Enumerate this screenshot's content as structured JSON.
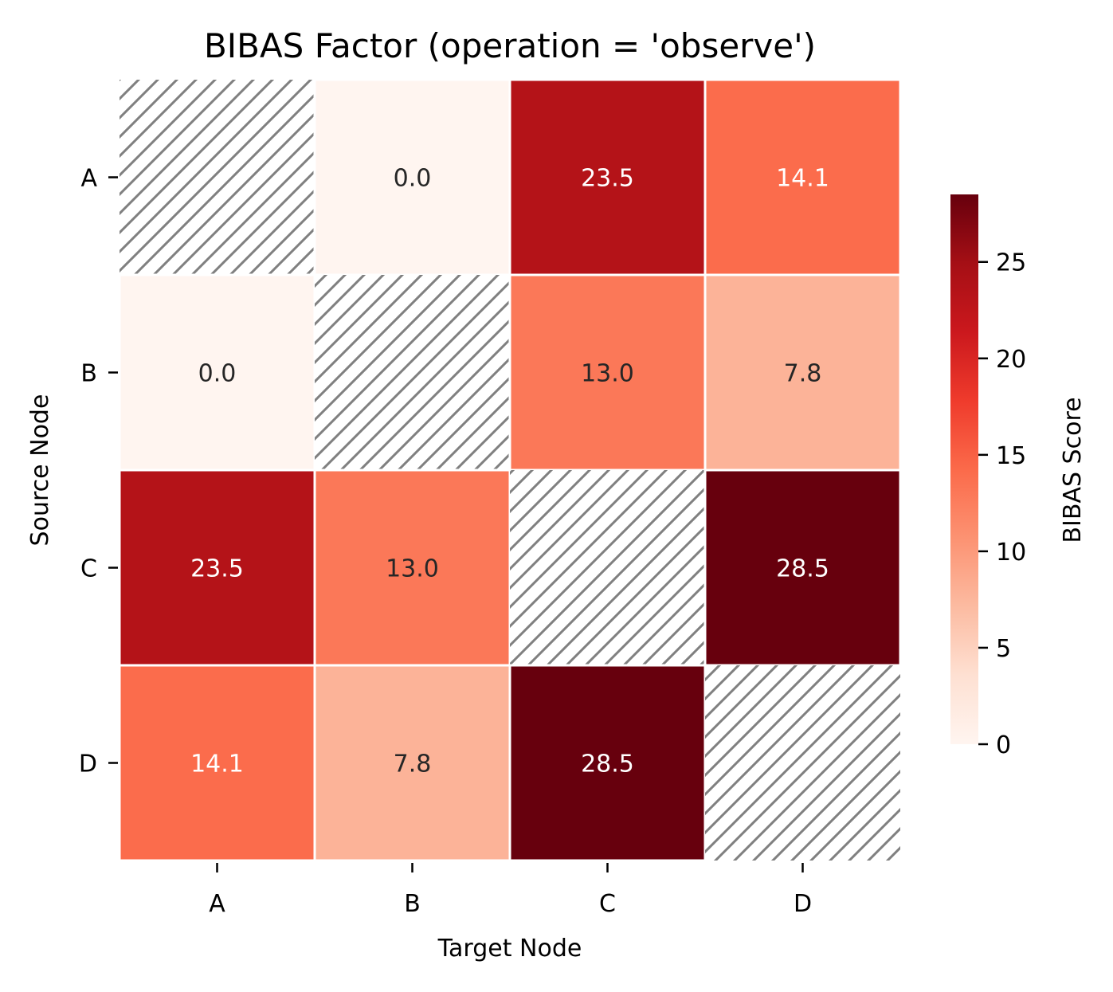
{
  "chart_data": {
    "type": "heatmap",
    "title": "BIBAS Factor (operation = 'observe')",
    "xlabel": "Target Node",
    "ylabel": "Source Node",
    "x_categories": [
      "A",
      "B",
      "C",
      "D"
    ],
    "y_categories": [
      "A",
      "B",
      "C",
      "D"
    ],
    "values": [
      [
        null,
        0.0,
        23.5,
        14.1
      ],
      [
        0.0,
        null,
        13.0,
        7.8
      ],
      [
        23.5,
        13.0,
        null,
        28.5
      ],
      [
        14.1,
        7.8,
        28.5,
        null
      ]
    ],
    "value_labels": [
      [
        null,
        "0.0",
        "23.5",
        "14.1"
      ],
      [
        "0.0",
        null,
        "13.0",
        "7.8"
      ],
      [
        "23.5",
        "13.0",
        null,
        "28.5"
      ],
      [
        "14.1",
        "7.8",
        "28.5",
        null
      ]
    ],
    "diagonal": "hatched (no value)",
    "colormap": "Reds",
    "colorbar": {
      "label": "BIBAS Score",
      "range": [
        0,
        28.5
      ],
      "ticks": [
        0,
        5,
        10,
        15,
        20,
        25
      ],
      "tick_labels": [
        "0",
        "5",
        "10",
        "15",
        "20",
        "25"
      ]
    },
    "colors": {
      "hatch": "#808080",
      "cell_border": "#ffffff",
      "dark_text": "#262626",
      "light_text": "#ffffff"
    }
  }
}
